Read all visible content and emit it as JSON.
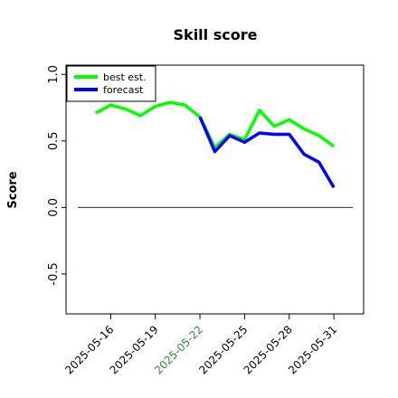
{
  "chart_data": {
    "type": "line",
    "title": "Skill score",
    "y_label": "Score",
    "x": [
      "2025-05-15",
      "2025-05-16",
      "2025-05-17",
      "2025-05-18",
      "2025-05-19",
      "2025-05-20",
      "2025-05-21",
      "2025-05-22",
      "2025-05-23",
      "2025-05-24",
      "2025-05-25",
      "2025-05-26",
      "2025-05-27",
      "2025-05-28",
      "2025-05-29",
      "2025-05-30",
      "2025-05-31"
    ],
    "series": [
      {
        "name": "best est.",
        "color": "#00ff00",
        "values": [
          0.71,
          0.77,
          0.74,
          0.69,
          0.76,
          0.79,
          0.77,
          0.68,
          0.45,
          0.55,
          0.51,
          0.73,
          0.61,
          0.66,
          0.59,
          0.54,
          0.46
        ]
      },
      {
        "name": "forecast",
        "color": "#0000ff",
        "values": [
          null,
          null,
          null,
          null,
          null,
          null,
          null,
          0.68,
          0.42,
          0.54,
          0.49,
          0.56,
          0.55,
          0.55,
          0.4,
          0.34,
          0.15
        ]
      }
    ],
    "xlim": [
      "2025-05-13",
      "2025-06-02"
    ],
    "xticks": [
      "2025-05-16",
      "2025-05-19",
      "2025-05-22",
      "2025-05-25",
      "2025-05-28",
      "2025-05-31"
    ],
    "highlight_xtick": "2025-05-22",
    "highlight_color": "#2e8b2e",
    "ylim": [
      -0.8,
      1.07
    ],
    "yticks": [
      {
        "value": -0.5,
        "label": "-0.5"
      },
      {
        "value": 0,
        "label": "0.0"
      },
      {
        "value": 0.5,
        "label": "0.5"
      },
      {
        "value": 1,
        "label": "1.0"
      }
    ],
    "hline": 0,
    "legend": "upper left"
  }
}
